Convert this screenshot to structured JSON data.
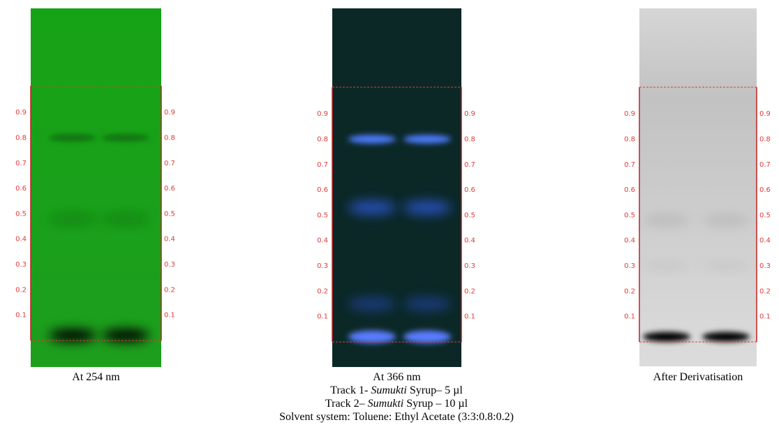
{
  "plates": [
    {
      "caption": "At 254 nm"
    },
    {
      "caption": "At 366 nm"
    },
    {
      "caption": "After Derivatisation"
    }
  ],
  "rf_scale": [
    "0.9",
    "0.8",
    "0.7",
    "0.6",
    "0.5",
    "0.4",
    "0.3",
    "0.2",
    "0.1"
  ],
  "legend": {
    "track_1": {
      "text_before": "Track 1- ",
      "italic": "Sumukti",
      "text_after": " Syrup– 5 µl"
    },
    "track_2": {
      "text_before": "Track 2– ",
      "italic": "Sumukti",
      "text_after": " Syrup – 10 µl"
    },
    "solvent_system": "Solvent system: Toluene: Ethyl Acetate (3:3:0.8:0.2)"
  }
}
